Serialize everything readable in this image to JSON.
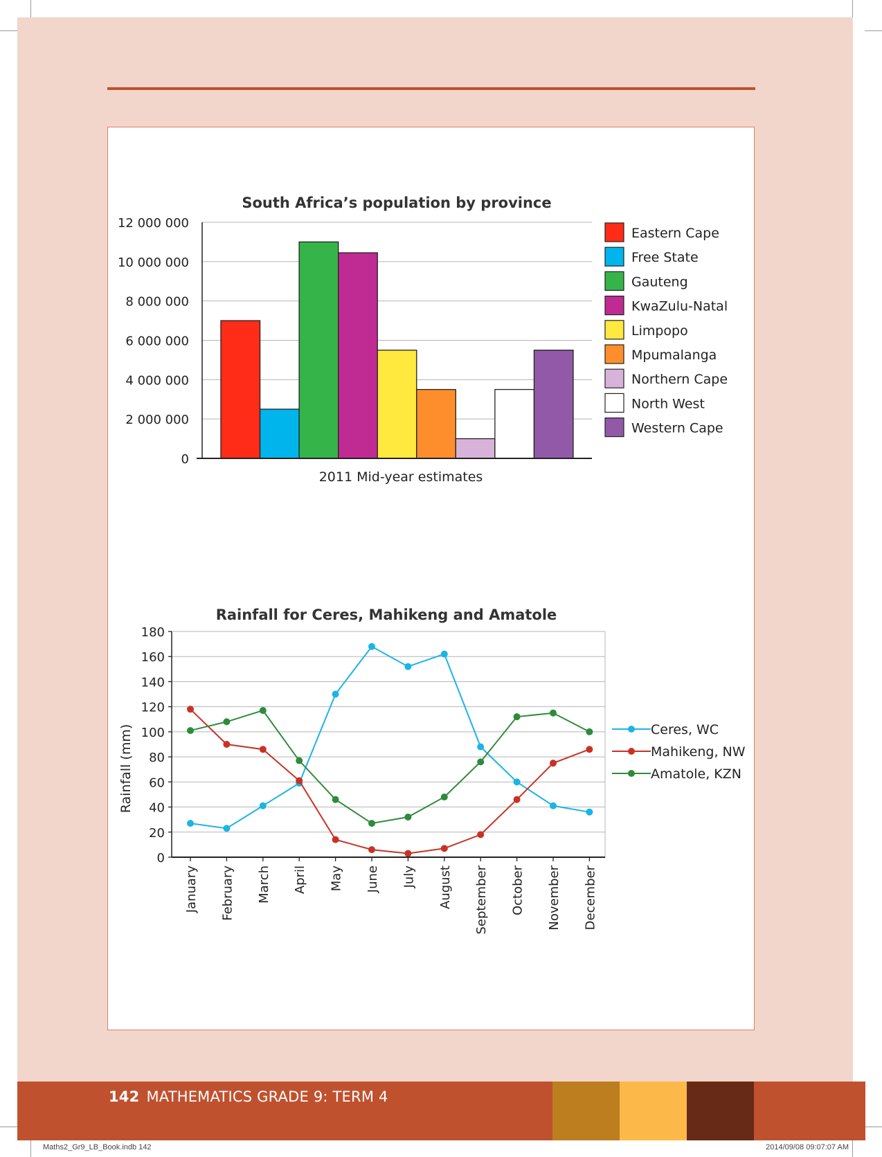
{
  "page": {
    "footer_page_number": "142",
    "footer_title": "MATHEMATICS GRADE 9: TERM 4",
    "slug_left": "Maths2_Gr9_LB_Book.indb   142",
    "slug_right": "2014/09/08   09:07:07 AM",
    "colors": {
      "accent": "#c0512f",
      "background": "#f2d6cc",
      "swatch_1": "#bc7e1f",
      "swatch_2": "#fcb94a",
      "swatch_3": "#672a16"
    }
  },
  "chart_data": [
    {
      "type": "bar",
      "title": "South Africa’s population by province",
      "xlabel": "2011 Mid-year estimates",
      "ylabel": "",
      "ylim": [
        0,
        12000000
      ],
      "yticks": [
        0,
        2000000,
        4000000,
        6000000,
        8000000,
        10000000,
        12000000
      ],
      "ytick_labels": [
        "0",
        "2 000 000",
        "4 000 000",
        "6 000 000",
        "8 000 000",
        "10 000 000",
        "12 000 000"
      ],
      "grid": true,
      "legend": "right",
      "categories": [
        "Eastern Cape",
        "Free State",
        "Gauteng",
        "KwaZulu-Natal",
        "Limpopo",
        "Mpumalanga",
        "Northern Cape",
        "North West",
        "Western Cape"
      ],
      "values": [
        7000000,
        2500000,
        11000000,
        10450000,
        5500000,
        3500000,
        1000000,
        3500000,
        5500000
      ],
      "colors": [
        "#ff2d18",
        "#00b4ec",
        "#35b44a",
        "#bf2a93",
        "#ffe93f",
        "#fd8e2b",
        "#d8b3d9",
        "#ffffff",
        "#9159a8"
      ]
    },
    {
      "type": "line",
      "title": "Rainfall for Ceres, Mahikeng and Amatole",
      "xlabel": "",
      "ylabel": "Rainfall (mm)",
      "ylim": [
        0,
        180
      ],
      "yticks": [
        0,
        20,
        40,
        60,
        80,
        100,
        120,
        140,
        160,
        180
      ],
      "grid": true,
      "legend": "right",
      "categories": [
        "January",
        "February",
        "March",
        "April",
        "May",
        "June",
        "July",
        "August",
        "September",
        "October",
        "November",
        "December"
      ],
      "series": [
        {
          "name": "Ceres, WC",
          "color": "#1bb4e5",
          "values": [
            27,
            23,
            41,
            59,
            130,
            168,
            152,
            162,
            88,
            60,
            41,
            36
          ]
        },
        {
          "name": "Mahikeng, NW",
          "color": "#c83225",
          "values": [
            118,
            90,
            86,
            61,
            14,
            6,
            3,
            7,
            18,
            46,
            75,
            86
          ]
        },
        {
          "name": "Amatole, KZN",
          "color": "#2f8b3c",
          "values": [
            101,
            108,
            117,
            77,
            46,
            27,
            32,
            48,
            76,
            112,
            115,
            100
          ]
        }
      ]
    }
  ]
}
